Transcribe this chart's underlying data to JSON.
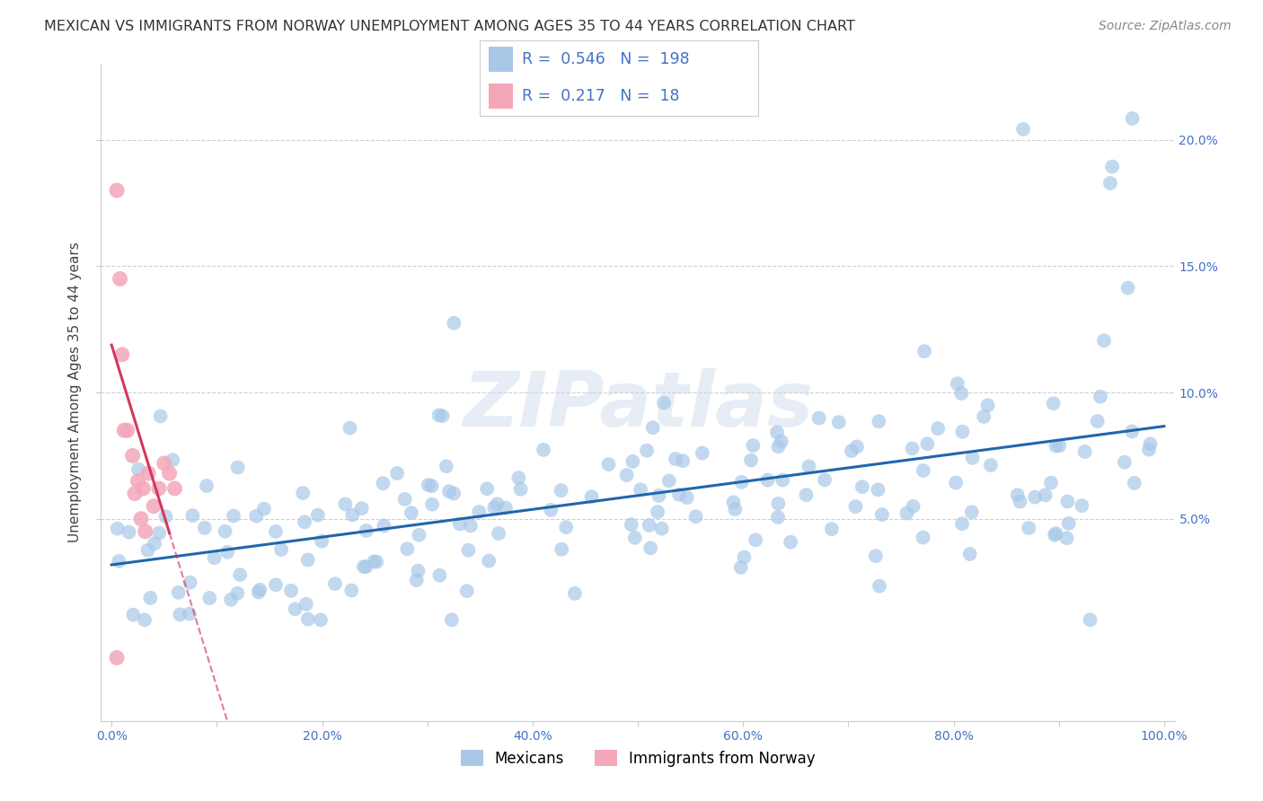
{
  "title": "MEXICAN VS IMMIGRANTS FROM NORWAY UNEMPLOYMENT AMONG AGES 35 TO 44 YEARS CORRELATION CHART",
  "source": "Source: ZipAtlas.com",
  "ylabel": "Unemployment Among Ages 35 to 44 years",
  "xlim": [
    -0.01,
    1.01
  ],
  "ylim": [
    -0.03,
    0.23
  ],
  "xticks": [
    0.0,
    0.1,
    0.2,
    0.3,
    0.4,
    0.5,
    0.6,
    0.7,
    0.8,
    0.9,
    1.0
  ],
  "xtick_labels": [
    "0.0%",
    "",
    "20.0%",
    "",
    "40.0%",
    "",
    "60.0%",
    "",
    "80.0%",
    "",
    "100.0%"
  ],
  "yticks": [
    0.05,
    0.1,
    0.15,
    0.2
  ],
  "ytick_labels": [
    "5.0%",
    "10.0%",
    "15.0%",
    "20.0%"
  ],
  "mexican_color": "#a8c8e8",
  "norway_color": "#f4a7b9",
  "mexican_R": 0.546,
  "mexican_N": 198,
  "norway_R": 0.217,
  "norway_N": 18,
  "mexican_line_color": "#2166ac",
  "norway_line_color": "#d6365e",
  "watermark_text": "ZIPatlas",
  "legend_label1": "Mexicans",
  "legend_label2": "Immigrants from Norway",
  "background_color": "#ffffff",
  "grid_color": "#d0d0d0",
  "seed": 42,
  "title_color": "#333333",
  "source_color": "#888888",
  "axis_label_color": "#444444",
  "tick_color": "#4472c4",
  "stat_color": "#4472c4",
  "x_nor": [
    0.005,
    0.008,
    0.01,
    0.012,
    0.015,
    0.02,
    0.022,
    0.025,
    0.028,
    0.03,
    0.032,
    0.035,
    0.04,
    0.045,
    0.05,
    0.055,
    0.06,
    0.005
  ],
  "y_nor": [
    0.18,
    0.145,
    0.115,
    0.085,
    0.085,
    0.075,
    0.06,
    0.065,
    0.05,
    0.062,
    0.045,
    0.068,
    0.055,
    0.062,
    0.072,
    0.068,
    0.062,
    -0.005
  ]
}
